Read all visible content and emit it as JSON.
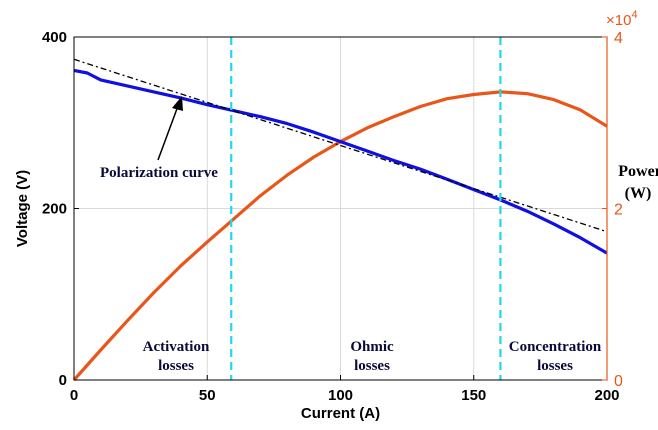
{
  "chart_data": {
    "type": "line",
    "xlabel": "Current (A)",
    "ylabel_left": "Voltage (V)",
    "ylabel_right": "Power (W)",
    "ylabel_right_line1": "Power",
    "ylabel_right_line2": "(W)",
    "xlim": [
      0,
      200
    ],
    "ylim_left": [
      0,
      400
    ],
    "ylim_right": [
      0,
      40000
    ],
    "right_axis_exponent_label": "×10",
    "right_axis_exponent_power": "4",
    "x_ticks": [
      "0",
      "50",
      "100",
      "150",
      "200"
    ],
    "y_left_ticks": [
      "0",
      "200",
      "400"
    ],
    "y_right_ticks": [
      "0",
      "2",
      "4"
    ],
    "grid": true,
    "colors": {
      "voltage": "#1010e0",
      "power": "#e8561a",
      "fit": "#000000",
      "region_divider": "#22d8e8",
      "right_axis": "#e8561a"
    },
    "series": [
      {
        "name": "Polarization curve",
        "axis": "left",
        "x": [
          0,
          5,
          10,
          20,
          30,
          40,
          50,
          60,
          70,
          80,
          90,
          100,
          110,
          120,
          130,
          140,
          150,
          160,
          170,
          180,
          190,
          200
        ],
        "y": [
          361,
          358,
          350,
          343,
          336,
          329,
          321,
          314,
          307,
          299,
          289,
          278,
          267,
          256,
          246,
          234,
          222,
          210,
          197,
          182,
          166,
          148
        ]
      },
      {
        "axis": "right",
        "x": [
          0,
          10,
          20,
          30,
          40,
          50,
          60,
          70,
          80,
          90,
          100,
          110,
          120,
          130,
          140,
          150,
          160,
          170,
          180,
          190,
          200
        ],
        "y": [
          0,
          3500,
          6900,
          10200,
          13300,
          16100,
          18800,
          21500,
          23900,
          26000,
          27800,
          29400,
          30700,
          31900,
          32800,
          33300,
          33600,
          33400,
          32700,
          31500,
          29600
        ]
      },
      {
        "axis": "left",
        "style": "dash-dot",
        "x": [
          0,
          200
        ],
        "y": [
          374,
          173
        ]
      }
    ],
    "vertical_lines_x": [
      59,
      160
    ],
    "annotations": {
      "polarization_curve": "Polarization curve",
      "activation": [
        "Activation",
        "losses"
      ],
      "ohmic": [
        "Ohmic",
        "losses"
      ],
      "concentration": [
        "Concentration",
        "losses"
      ]
    }
  }
}
